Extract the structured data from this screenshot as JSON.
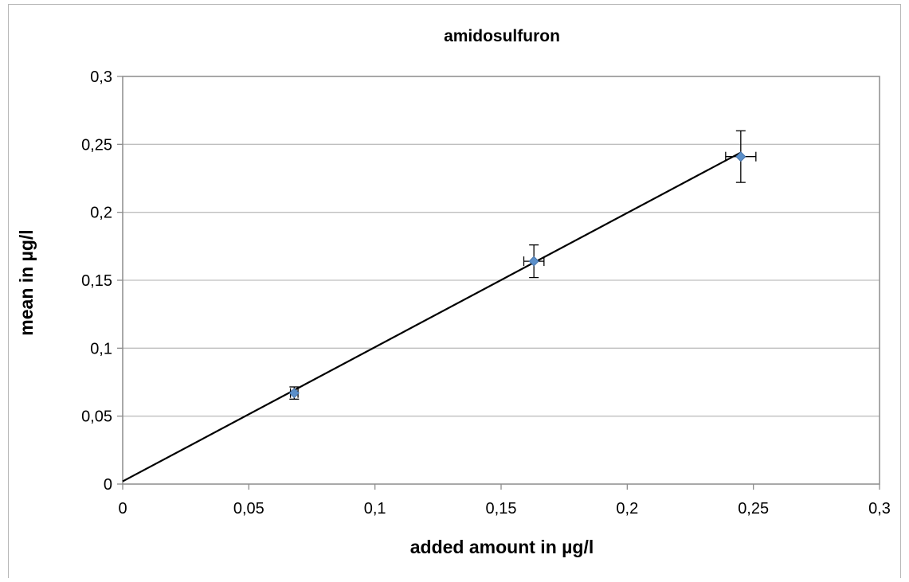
{
  "chart_data": {
    "type": "scatter",
    "title": "amidosulfuron",
    "xlabel": "added amount in µg/l",
    "ylabel": "mean in µg/l",
    "xlim": [
      0,
      0.3
    ],
    "ylim": [
      0,
      0.3
    ],
    "x_ticks": [
      "0",
      "0,05",
      "0,1",
      "0,15",
      "0,2",
      "0,25",
      "0,3"
    ],
    "y_ticks": [
      "0",
      "0,05",
      "0,1",
      "0,15",
      "0,2",
      "0,25",
      "0,3"
    ],
    "grid": "horizontal",
    "legend": "none",
    "points": [
      {
        "x": 0.068,
        "y": 0.067,
        "y_err": 0.0045,
        "x_err": 0.0015
      },
      {
        "x": 0.163,
        "y": 0.164,
        "y_err": 0.012,
        "x_err": 0.004
      },
      {
        "x": 0.245,
        "y": 0.241,
        "y_err": 0.019,
        "x_err": 0.006
      }
    ],
    "trendline": {
      "x": [
        0,
        0.245
      ],
      "y": [
        0.002,
        0.244
      ]
    },
    "colors": {
      "marker": "#5b8fc9",
      "marker_edge": "#3e6aa0",
      "line": "#000000",
      "grid": "#bfbfbf",
      "axis": "#8c8c8c"
    }
  }
}
